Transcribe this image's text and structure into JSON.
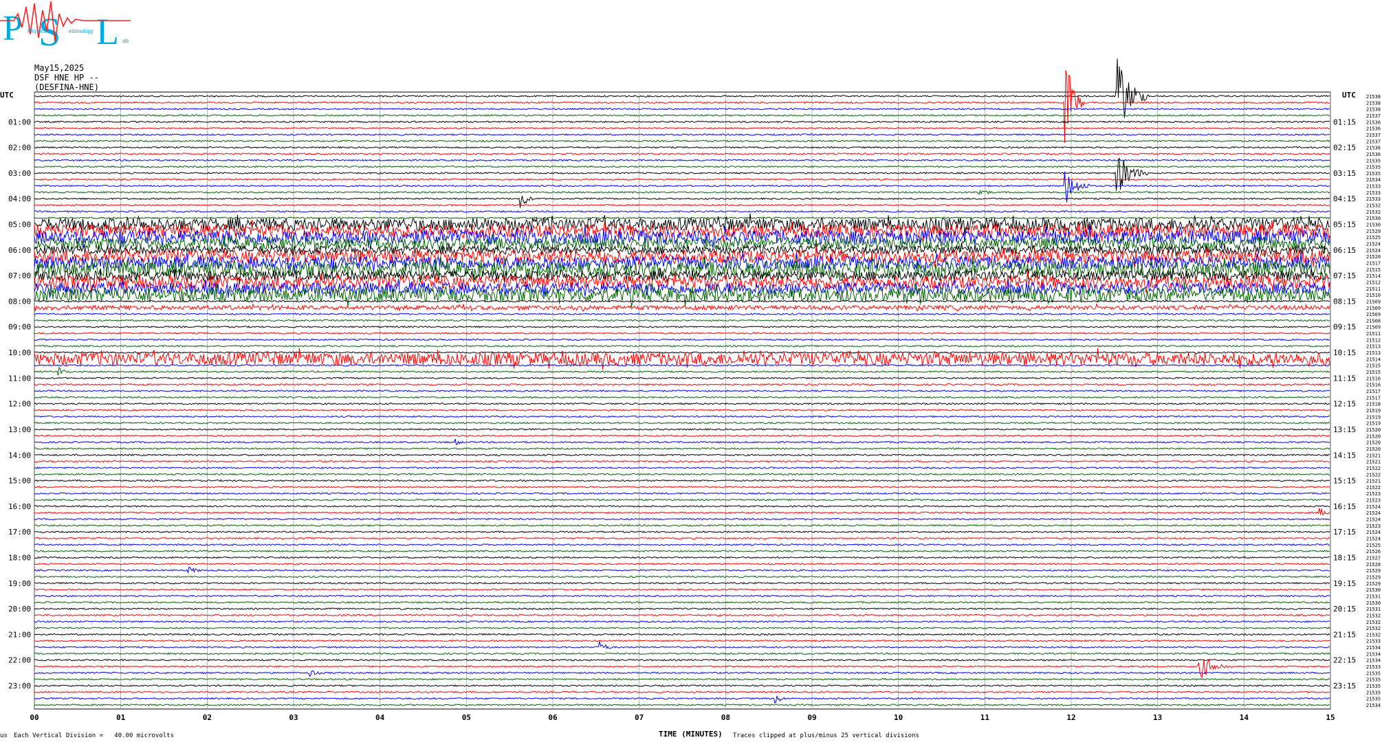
{
  "header": {
    "logo_text": "PSL",
    "date": "May15,2025",
    "station": "DSF HNE HP --",
    "channel": "(DESFINA-HNE)"
  },
  "left_axis_title": "UTC",
  "right_axis_title": "UTC",
  "footer": {
    "division_note": "Each Vertical Division =   40.00 microvolts",
    "x_axis_title": "TIME (MINUTES)",
    "clip_note": "Traces clipped at plus/minus 25 vertical divisions",
    "corner_mark": "us"
  },
  "chart_data": {
    "type": "line",
    "xlabel": "TIME (MINUTES)",
    "xlim": [
      0,
      15
    ],
    "x_ticks": [
      "00",
      "01",
      "02",
      "03",
      "04",
      "05",
      "06",
      "07",
      "08",
      "09",
      "10",
      "11",
      "12",
      "13",
      "14",
      "15"
    ],
    "left_hour_labels": [
      "UTC",
      "01:00",
      "02:00",
      "03:00",
      "04:00",
      "05:00",
      "06:00",
      "07:00",
      "08:00",
      "09:00",
      "10:00",
      "11:00",
      "12:00",
      "13:00",
      "14:00",
      "15:00",
      "16:00",
      "17:00",
      "18:00",
      "19:00",
      "20:00",
      "21:00",
      "22:00",
      "23:00"
    ],
    "right_hour_labels": [
      "UTC",
      "01:15",
      "02:15",
      "03:15",
      "04:15",
      "05:15",
      "06:15",
      "07:15",
      "08:15",
      "09:15",
      "10:15",
      "11:15",
      "12:15",
      "13:15",
      "14:15",
      "15:15",
      "16:15",
      "17:15",
      "18:15",
      "19:15",
      "20:15",
      "21:15",
      "22:15",
      "23:15"
    ],
    "trace_colors": [
      "#000000",
      "#ff0000",
      "#0000ff",
      "#006400"
    ],
    "num_traces": 96,
    "traces_per_hour": 4,
    "minutes_per_trace": 15,
    "right_counts": [
      21538,
      21538,
      21538,
      21537,
      21536,
      21536,
      21537,
      21537,
      21536,
      21536,
      21535,
      21535,
      21535,
      21534,
      21533,
      21533,
      21533,
      21532,
      21532,
      21530,
      21530,
      21529,
      21525,
      21524,
      21524,
      21520,
      21517,
      21515,
      21514,
      21512,
      21511,
      21510,
      21509,
      21509,
      21509,
      21508,
      21509,
      21511,
      21512,
      21513,
      21513,
      21514,
      21515,
      21515,
      21516,
      21516,
      21517,
      21517,
      21518,
      21519,
      21519,
      21519,
      21520,
      21520,
      21520,
      21520,
      21521,
      21521,
      21522,
      21522,
      21521,
      21522,
      21523,
      21523,
      21524,
      21524,
      21524,
      21523,
      21524,
      21524,
      21525,
      21526,
      21527,
      21528,
      21529,
      21529,
      21529,
      21530,
      21531,
      21530,
      21531,
      21532,
      21532,
      21532,
      21532,
      21533,
      21534,
      21534,
      21534,
      21533,
      21535,
      21535,
      21535,
      21535,
      21535,
      21534
    ],
    "events": [
      {
        "trace": 1,
        "minute": 11.95,
        "amplitude": 60,
        "width_min": 0.2
      },
      {
        "trace": 0,
        "minute": 12.55,
        "amplitude": 55,
        "width_min": 0.35
      },
      {
        "trace": 14,
        "minute": 11.95,
        "amplitude": 25,
        "width_min": 0.3
      },
      {
        "trace": 12,
        "minute": 12.55,
        "amplitude": 30,
        "width_min": 0.35
      },
      {
        "trace": 86,
        "minute": 6.55,
        "amplitude": 9,
        "width_min": 0.2
      },
      {
        "trace": 89,
        "minute": 13.5,
        "amplitude": 18,
        "width_min": 0.4
      },
      {
        "trace": 94,
        "minute": 8.6,
        "amplitude": 7,
        "width_min": 0.15
      },
      {
        "trace": 90,
        "minute": 3.2,
        "amplitude": 6,
        "width_min": 0.2
      },
      {
        "trace": 74,
        "minute": 1.8,
        "amplitude": 5,
        "width_min": 0.25
      },
      {
        "trace": 16,
        "minute": 5.65,
        "amplitude": 14,
        "width_min": 0.15
      },
      {
        "trace": 43,
        "minute": 0.3,
        "amplitude": 8,
        "width_min": 0.15
      },
      {
        "trace": 65,
        "minute": 14.9,
        "amplitude": 7,
        "width_min": 0.2
      },
      {
        "trace": 15,
        "minute": 10.95,
        "amplitude": 6,
        "width_min": 0.25
      },
      {
        "trace": 54,
        "minute": 4.9,
        "amplitude": 5,
        "width_min": 0.1
      }
    ],
    "noisy_traces": {
      "20": 9,
      "21": 9,
      "22": 10,
      "23": 8,
      "24": 6,
      "25": 9,
      "26": 9,
      "27": 11,
      "28": 7,
      "29": 9,
      "30": 8,
      "31": 10,
      "33": 3,
      "41": 9
    }
  }
}
